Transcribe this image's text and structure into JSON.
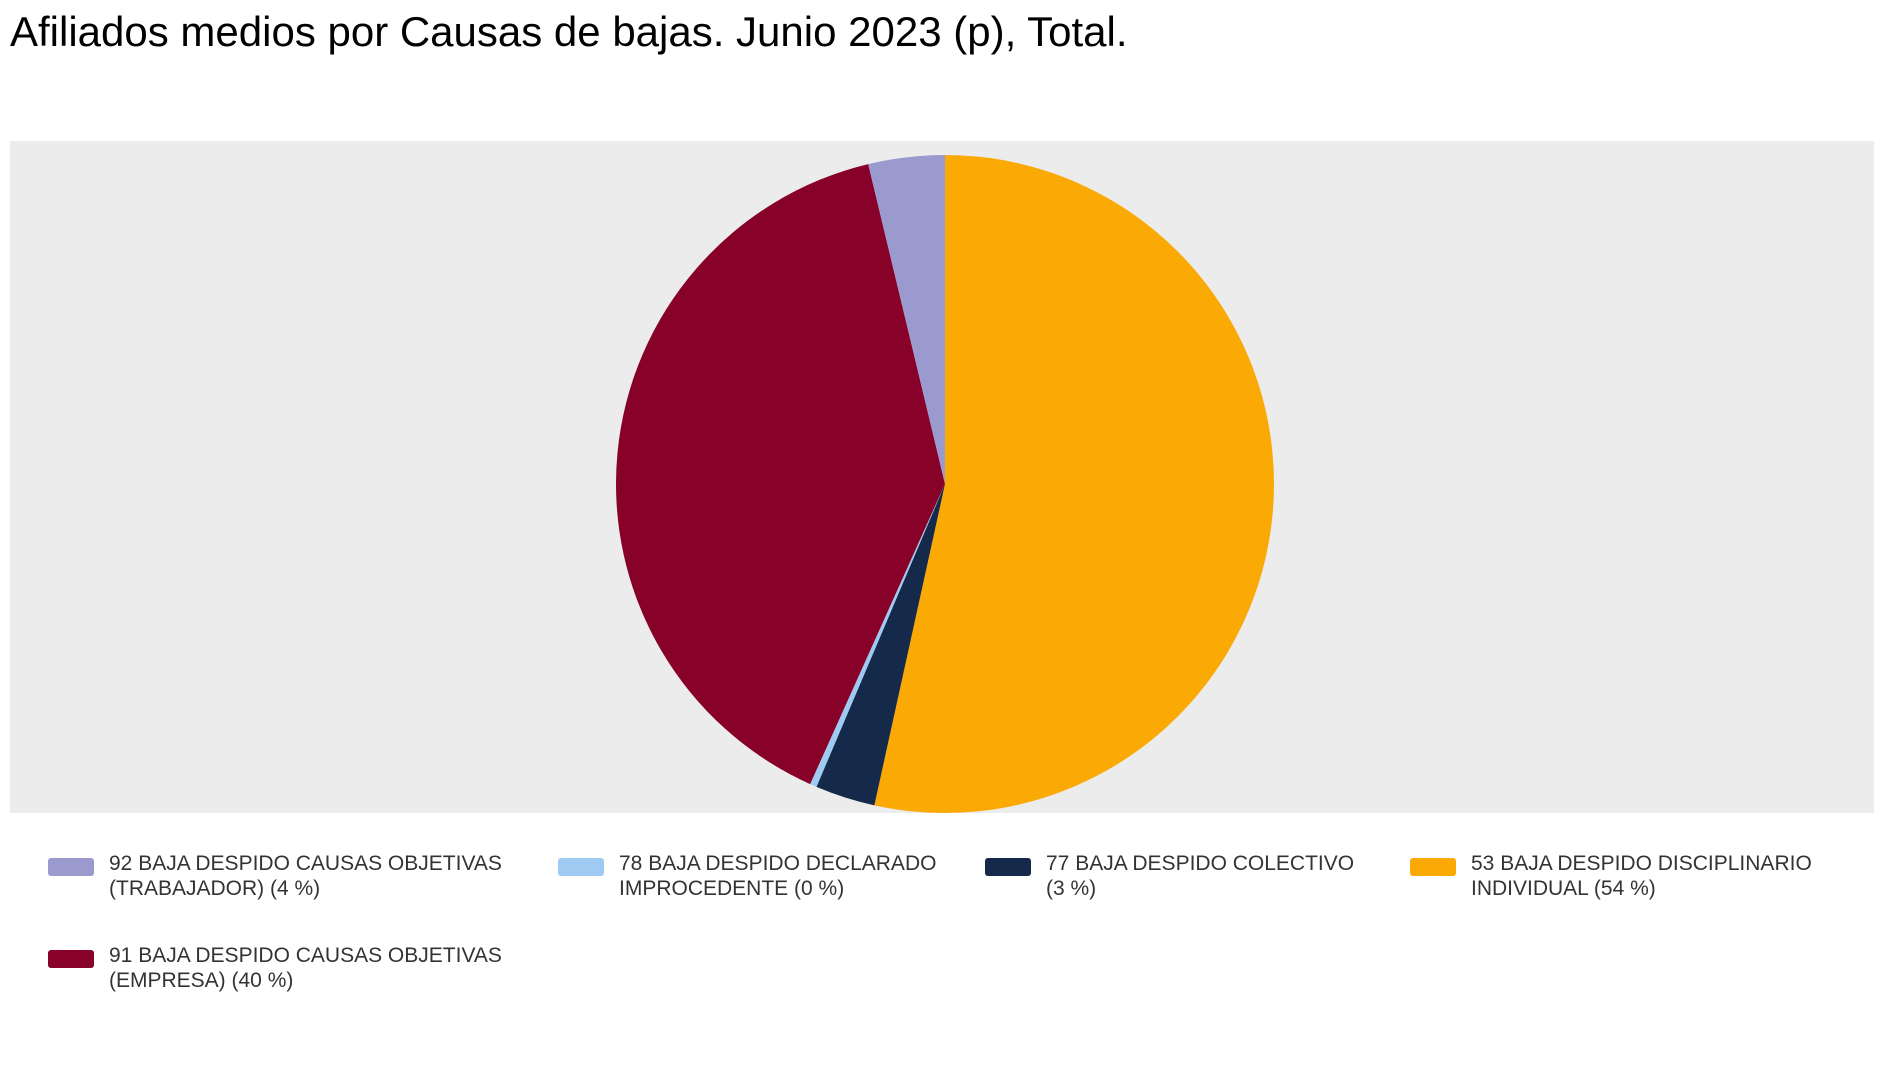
{
  "title": "Afiliados medios por Causas de bajas. Junio 2023 (p), Total.",
  "chart_data": {
    "type": "pie",
    "title": "Afiliados medios por Causas de bajas. Junio 2023 (p), Total.",
    "legend_position": "bottom",
    "start_angle_deg": 0,
    "direction": "clockwise",
    "slices": [
      {
        "code": "53",
        "label": "53 BAJA DESPIDO DISCIPLINARIO INDIVIDUAL",
        "percent": 54,
        "sweep_deg": 192.4,
        "color": "#FAA905"
      },
      {
        "code": "77",
        "label": "77 BAJA DESPIDO COLECTIVO",
        "percent": 3,
        "sweep_deg": 10.6,
        "color": "#152A4A"
      },
      {
        "code": "78",
        "label": "78 BAJA DESPIDO DECLARADO IMPROCEDENTE",
        "percent": 0,
        "sweep_deg": 1.2,
        "color": "#9FCBF3"
      },
      {
        "code": "91",
        "label": "91 BAJA DESPIDO CAUSAS OBJETIVAS (EMPRESA)",
        "percent": 40,
        "sweep_deg": 142.3,
        "color": "#870129"
      },
      {
        "code": "92",
        "label": "92 BAJA DESPIDO CAUSAS OBJETIVAS (TRABAJADOR)",
        "percent": 4,
        "sweep_deg": 13.5,
        "color": "#9A9ACE"
      }
    ]
  },
  "legend": {
    "items": [
      {
        "line1": "92 BAJA DESPIDO CAUSAS OBJETIVAS",
        "line2": "(TRABAJADOR) (4 %)",
        "color": "#9A9ACE"
      },
      {
        "line1": "78 BAJA DESPIDO DECLARADO",
        "line2": "IMPROCEDENTE (0 %)",
        "color": "#9FCBF3"
      },
      {
        "line1": "77 BAJA DESPIDO COLECTIVO",
        "line2": "(3 %)",
        "color": "#152A4A"
      },
      {
        "line1": "53 BAJA DESPIDO DISCIPLINARIO",
        "line2": "INDIVIDUAL (54 %)",
        "color": "#FAA905"
      },
      {
        "line1": "91 BAJA DESPIDO CAUSAS OBJETIVAS",
        "line2": "(EMPRESA) (40 %)",
        "color": "#870129"
      }
    ]
  },
  "colors": {
    "page_background": "#FFFFFF",
    "plot_background": "#ECECEC",
    "title_text": "#000000",
    "legend_text": "#333333"
  }
}
